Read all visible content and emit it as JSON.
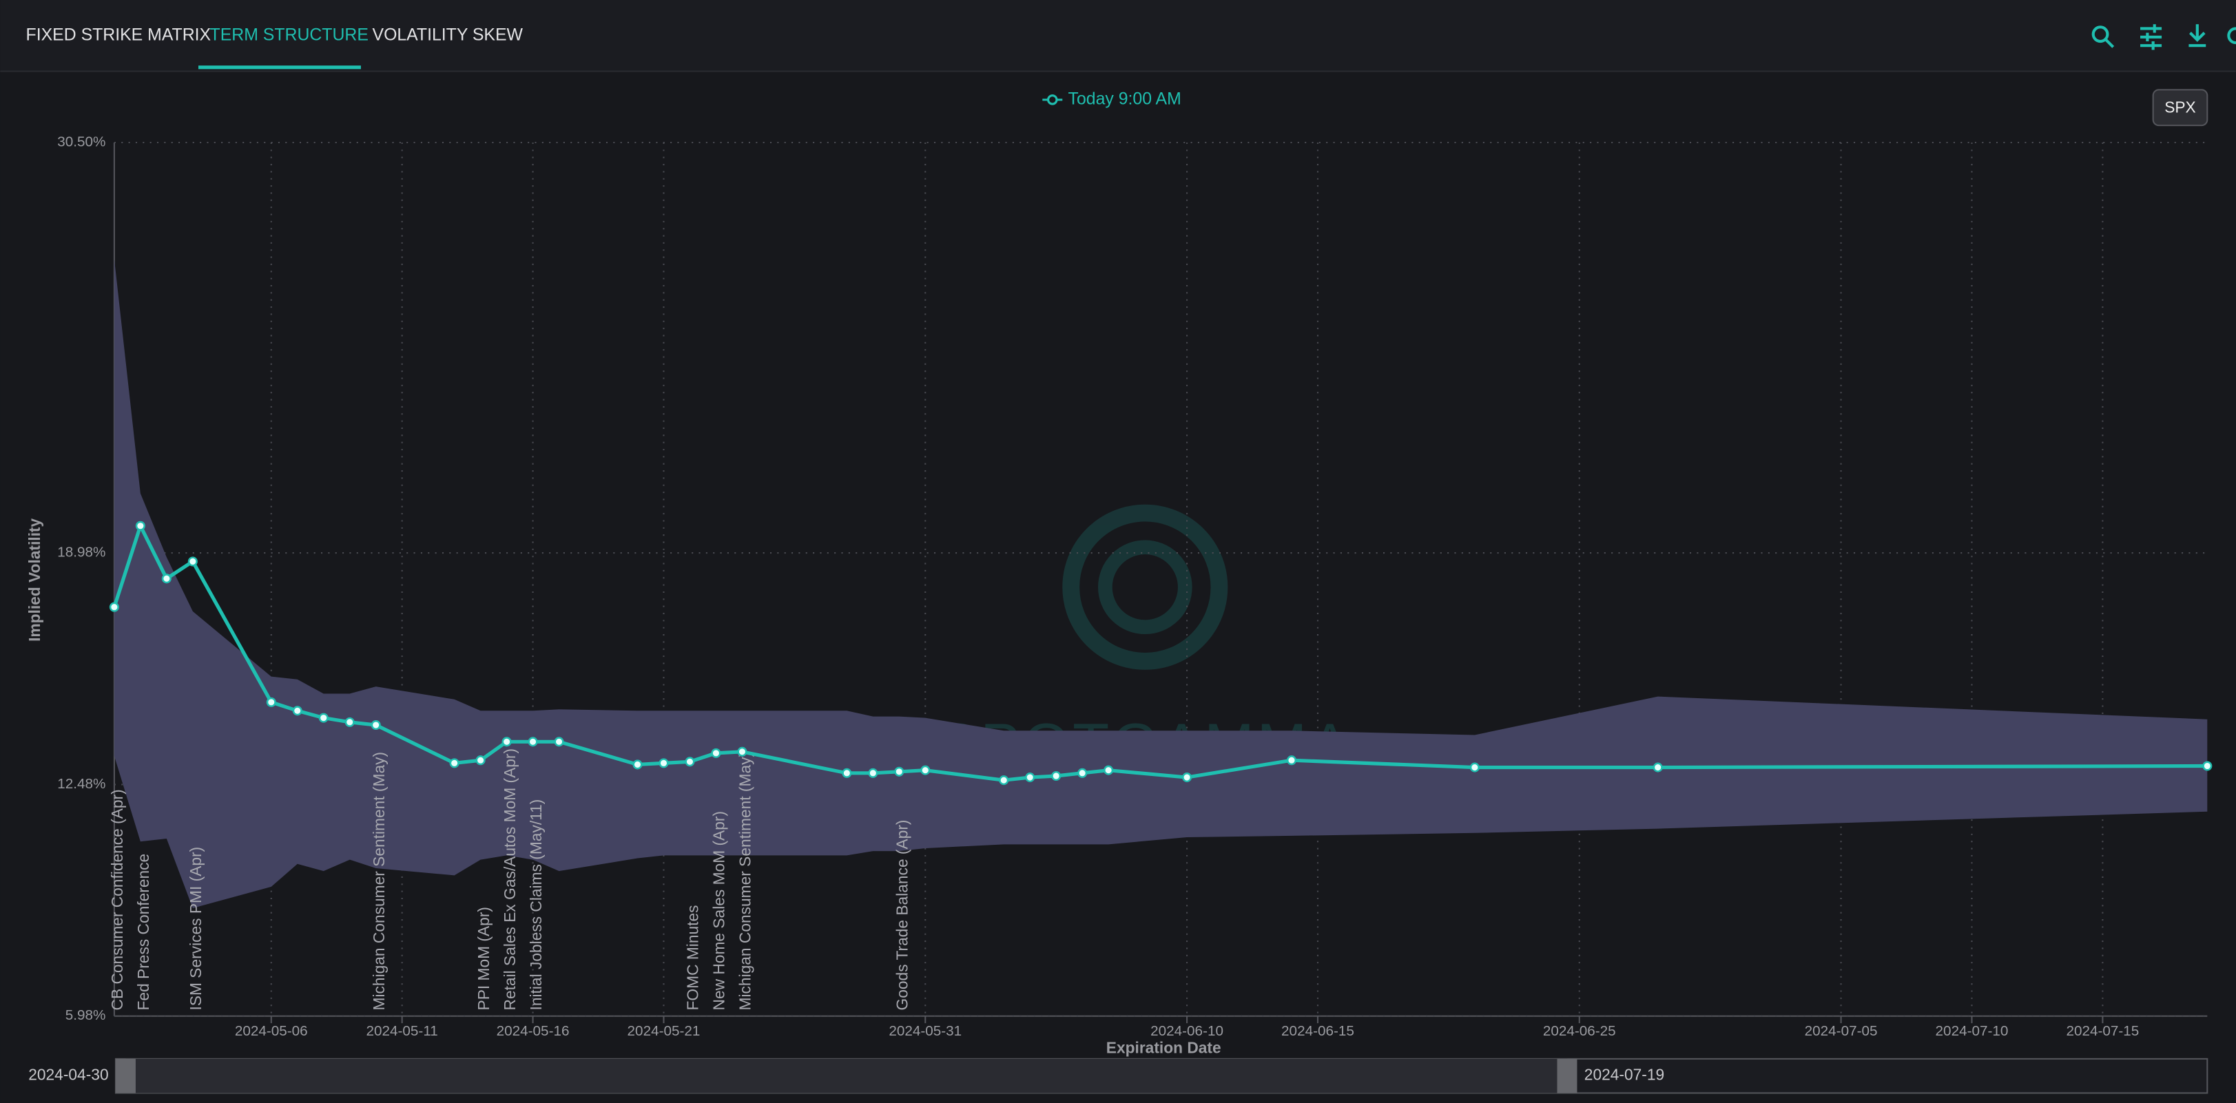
{
  "tabs": [
    "FIXED STRIKE MATRIX",
    "TERM STRUCTURE",
    "VOLATILITY SKEW"
  ],
  "symbol": "SPX",
  "chart_data": {
    "type": "line",
    "xlabel": "Expiration Date",
    "ylabel": "Implied Volatility",
    "watermark": "SPOTGAMMA",
    "x": [
      "2024-04-30",
      "2024-05-01",
      "2024-05-02",
      "2024-05-03",
      "2024-05-06",
      "2024-05-07",
      "2024-05-08",
      "2024-05-09",
      "2024-05-10",
      "2024-05-13",
      "2024-05-14",
      "2024-05-15",
      "2024-05-16",
      "2024-05-17",
      "2024-05-20",
      "2024-05-21",
      "2024-05-22",
      "2024-05-23",
      "2024-05-24",
      "2024-05-28",
      "2024-05-29",
      "2024-05-30",
      "2024-05-31",
      "2024-06-03",
      "2024-06-04",
      "2024-06-05",
      "2024-06-06",
      "2024-06-07",
      "2024-06-10",
      "2024-06-14",
      "2024-06-21",
      "2024-06-28",
      "2024-07-19"
    ],
    "series": [
      {
        "name": "Today 9:00 AM",
        "color": "#1fbfb0",
        "values": [
          17.46,
          19.74,
          18.26,
          18.74,
          14.79,
          14.55,
          14.35,
          14.23,
          14.15,
          13.08,
          13.16,
          13.68,
          13.68,
          13.68,
          13.04,
          13.08,
          13.12,
          13.36,
          13.4,
          12.8,
          12.8,
          12.84,
          12.88,
          12.6,
          12.68,
          12.72,
          12.8,
          12.88,
          12.68,
          13.16,
          12.96,
          12.96,
          13.0
        ]
      }
    ],
    "band": {
      "color": "#434361",
      "upper": [
        27.23,
        20.65,
        18.86,
        17.34,
        15.51,
        15.43,
        15.03,
        15.03,
        15.23,
        14.87,
        14.55,
        14.55,
        14.55,
        14.59,
        14.55,
        14.55,
        14.55,
        14.55,
        14.55,
        14.55,
        14.39,
        14.39,
        14.35,
        13.99,
        13.99,
        13.99,
        13.99,
        13.99,
        13.99,
        13.99,
        13.87,
        14.95,
        14.31
      ],
      "lower": [
        13.28,
        10.88,
        10.96,
        9.01,
        9.61,
        10.25,
        10.05,
        10.37,
        10.13,
        9.93,
        10.37,
        10.49,
        10.37,
        10.05,
        10.41,
        10.49,
        10.49,
        10.49,
        10.49,
        10.49,
        10.61,
        10.61,
        10.69,
        10.8,
        10.8,
        10.8,
        10.8,
        10.8,
        11.0,
        11.04,
        11.12,
        11.24,
        11.72
      ]
    },
    "events": [
      {
        "date": "2024-04-30",
        "label": "CB Consumer Confidence (Apr)"
      },
      {
        "date": "2024-05-01",
        "label": "Fed Press Conference"
      },
      {
        "date": "2024-05-03",
        "label": "ISM Services PMI (Apr)"
      },
      {
        "date": "2024-05-10",
        "label": "Michigan Consumer Sentiment (May)"
      },
      {
        "date": "2024-05-14",
        "label": "PPI MoM (Apr)"
      },
      {
        "date": "2024-05-15",
        "label": "Retail Sales Ex Gas/Autos MoM (Apr)"
      },
      {
        "date": "2024-05-16",
        "label": "Initial Jobless Claims (May/11)"
      },
      {
        "date": "2024-05-22",
        "label": "FOMC Minutes"
      },
      {
        "date": "2024-05-23",
        "label": "New Home Sales MoM (Apr)"
      },
      {
        "date": "2024-05-24",
        "label": "Michigan Consumer Sentiment (May)"
      },
      {
        "date": "2024-05-30",
        "label": "Goods Trade Balance (Apr)"
      }
    ],
    "xlim": [
      "2024-04-30",
      "2024-07-19"
    ],
    "xticks": [
      "2024-05-06",
      "2024-05-11",
      "2024-05-16",
      "2024-05-21",
      "2024-05-31",
      "2024-06-10",
      "2024-06-15",
      "2024-06-25",
      "2024-07-05",
      "2024-07-10",
      "2024-07-15"
    ],
    "ylim": [
      5.98,
      30.5
    ],
    "yticks": [
      {
        "value": 5.98,
        "label": "5.98%"
      },
      {
        "value": 12.48,
        "label": "12.48%"
      },
      {
        "value": 18.98,
        "label": "18.98%"
      },
      {
        "value": 30.5,
        "label": "30.50%"
      }
    ],
    "grid": true
  }
}
